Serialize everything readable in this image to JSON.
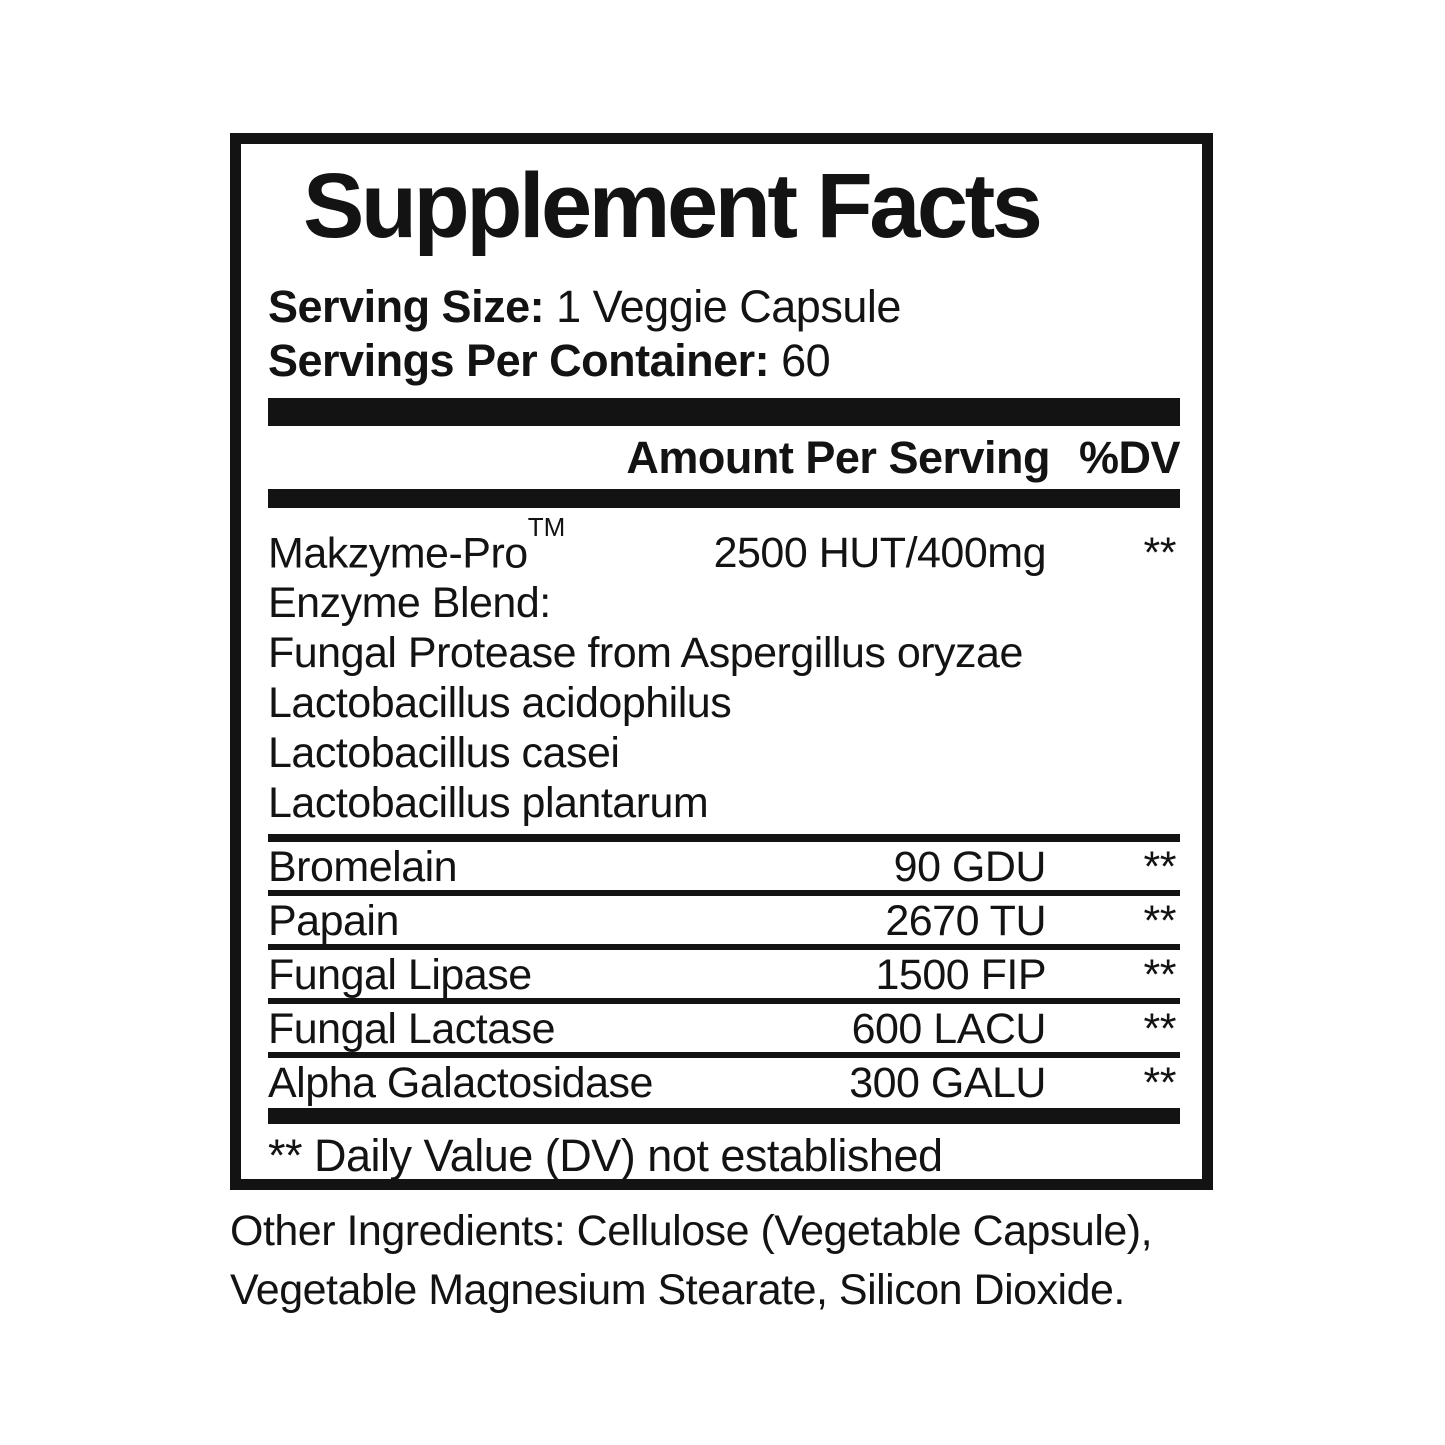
{
  "panel": {
    "title": "Supplement Facts",
    "serving_size": {
      "label": "Serving Size:",
      "value": "1 Veggie Capsule"
    },
    "servings_per_container": {
      "label": "Servings Per Container:",
      "value": "60"
    },
    "columns": {
      "amount": "Amount Per Serving",
      "dv": "%DV"
    },
    "blend": {
      "name": "Makzyme-Pro",
      "trademark": "TM",
      "amount": "2500 HUT/400mg",
      "dv": "**",
      "lines": [
        "Enzyme Blend:",
        "Fungal Protease from Aspergillus oryzae",
        "Lactobacillus acidophilus",
        "Lactobacillus casei",
        "Lactobacillus plantarum"
      ]
    },
    "rows": [
      {
        "name": "Bromelain",
        "amount": "90 GDU",
        "dv": "**"
      },
      {
        "name": "Papain",
        "amount": "2670 TU",
        "dv": "**"
      },
      {
        "name": "Fungal Lipase",
        "amount": "1500 FIP",
        "dv": "**"
      },
      {
        "name": "Fungal Lactase",
        "amount": "600 LACU",
        "dv": "**"
      },
      {
        "name": "Alpha Galactosidase",
        "amount": "300 GALU",
        "dv": "**"
      }
    ],
    "footnote": "** Daily Value (DV) not established"
  },
  "other_ingredients": {
    "label": "Other Ingredients:",
    "line1_rest": "Cellulose (Vegetable Capsule),",
    "line2": "Vegetable Magnesium Stearate, Silicon Dioxide."
  },
  "colors": {
    "ink": "#131313",
    "background": "#ffffff"
  }
}
